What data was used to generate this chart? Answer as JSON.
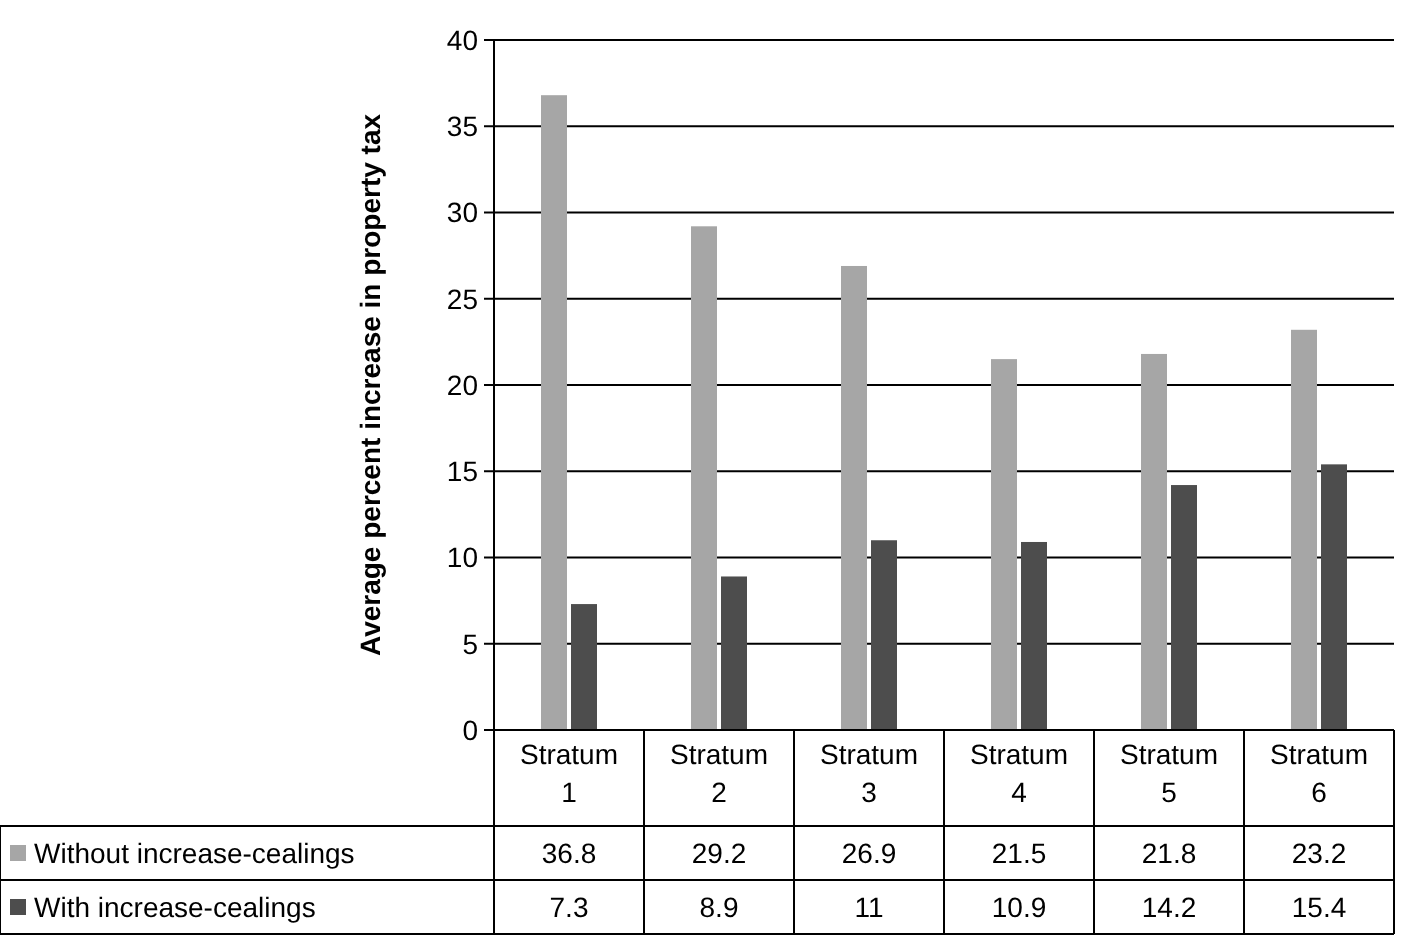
{
  "chart_data": {
    "type": "bar",
    "ylabel": "Average percent increase in property tax",
    "categories": [
      "Stratum 1",
      "Stratum 2",
      "Stratum 3",
      "Stratum 4",
      "Stratum 5",
      "Stratum 6"
    ],
    "series": [
      {
        "name": "Without increase-cealings",
        "color": "#a6a6a6",
        "values": [
          36.8,
          29.2,
          26.9,
          21.5,
          21.8,
          23.2
        ]
      },
      {
        "name": "With increase-cealings",
        "color": "#4d4d4d",
        "values": [
          7.3,
          8.9,
          11,
          10.9,
          14.2,
          15.4
        ]
      }
    ],
    "ylim": [
      0,
      40
    ],
    "yticks": [
      0,
      5,
      10,
      15,
      20,
      25,
      30,
      35,
      40
    ],
    "grid": "y",
    "data_labels": true,
    "legend": "bottom"
  }
}
